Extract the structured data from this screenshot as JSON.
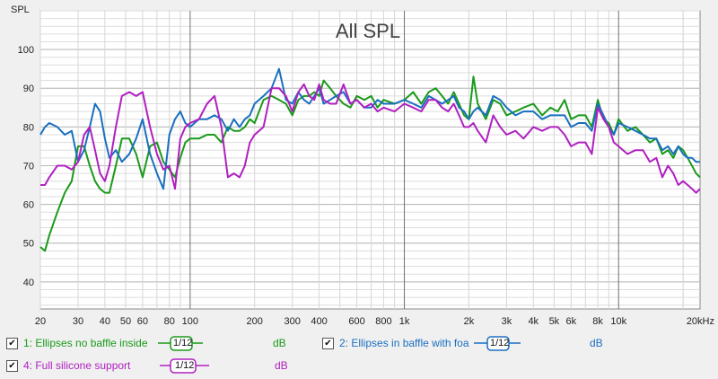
{
  "chart_data": {
    "type": "line",
    "title": "All SPL",
    "ylabel": "SPL",
    "xlabel": "",
    "x_scale": "log",
    "xlim": [
      20,
      24000
    ],
    "ylim": [
      33,
      110
    ],
    "grid": true,
    "y_ticks": [
      40,
      50,
      60,
      70,
      80,
      90,
      100
    ],
    "x_ticks": [
      {
        "v": 20,
        "label": "20"
      },
      {
        "v": 30,
        "label": "30"
      },
      {
        "v": 40,
        "label": "40"
      },
      {
        "v": 50,
        "label": "50"
      },
      {
        "v": 60,
        "label": "60"
      },
      {
        "v": 80,
        "label": "80"
      },
      {
        "v": 100,
        "label": "100"
      },
      {
        "v": 200,
        "label": "200"
      },
      {
        "v": 300,
        "label": "300"
      },
      {
        "v": 400,
        "label": "400"
      },
      {
        "v": 600,
        "label": "600"
      },
      {
        "v": 800,
        "label": "800"
      },
      {
        "v": 1000,
        "label": "1k"
      },
      {
        "v": 2000,
        "label": "2k"
      },
      {
        "v": 3000,
        "label": "3k"
      },
      {
        "v": 4000,
        "label": "4k"
      },
      {
        "v": 5000,
        "label": "5k"
      },
      {
        "v": 6000,
        "label": "6k"
      },
      {
        "v": 8000,
        "label": "8k"
      },
      {
        "v": 10000,
        "label": "10k"
      },
      {
        "v": 20000,
        "label": "20kHz"
      }
    ],
    "series": [
      {
        "name": "1: Ellipses no baffle inside",
        "color": "#1a9a1a",
        "x": [
          20,
          21,
          22,
          24,
          26,
          28,
          30,
          32,
          34,
          36,
          38,
          40,
          42,
          45,
          48,
          52,
          56,
          60,
          65,
          70,
          75,
          80,
          85,
          90,
          95,
          100,
          110,
          120,
          130,
          140,
          150,
          160,
          170,
          180,
          190,
          200,
          220,
          240,
          260,
          280,
          300,
          320,
          340,
          360,
          380,
          400,
          420,
          450,
          480,
          520,
          560,
          600,
          650,
          700,
          750,
          800,
          900,
          1000,
          1100,
          1200,
          1300,
          1400,
          1500,
          1600,
          1700,
          1800,
          1900,
          2000,
          2100,
          2200,
          2400,
          2600,
          2800,
          3000,
          3300,
          3600,
          4000,
          4400,
          4800,
          5200,
          5600,
          6000,
          6500,
          7000,
          7500,
          8000,
          8500,
          9000,
          9500,
          10000,
          11000,
          12000,
          13000,
          14000,
          15000,
          16000,
          17000,
          18000,
          19000,
          20000,
          21000,
          22000,
          23000,
          24000
        ],
        "y": [
          49,
          48,
          52,
          58,
          63,
          66,
          75,
          75,
          70,
          66,
          64,
          63,
          63,
          70,
          77,
          77,
          73,
          67,
          75,
          76,
          71,
          69,
          67,
          72,
          76,
          77,
          77,
          78,
          78,
          76,
          80,
          79,
          79,
          80,
          82,
          81,
          87,
          88,
          87,
          86,
          83,
          87,
          88,
          88,
          89,
          88,
          92,
          90,
          88,
          86,
          85,
          88,
          87,
          88,
          85,
          87,
          86,
          87,
          89,
          86,
          89,
          90,
          88,
          86,
          89,
          86,
          83,
          82,
          93,
          86,
          82,
          87,
          86,
          83,
          84,
          85,
          86,
          83,
          85,
          84,
          87,
          82,
          83,
          83,
          80,
          87,
          82,
          81,
          78,
          82,
          79,
          80,
          78,
          76,
          77,
          73,
          74,
          72,
          75,
          74,
          72,
          70,
          68,
          67
        ]
      },
      {
        "name": "2: Ellipses in baffle with foa",
        "color": "#1a6fc0",
        "x": [
          20,
          21,
          22,
          24,
          26,
          28,
          30,
          32,
          34,
          36,
          38,
          40,
          42,
          45,
          48,
          52,
          56,
          60,
          65,
          70,
          75,
          80,
          85,
          90,
          95,
          100,
          110,
          120,
          130,
          140,
          150,
          160,
          170,
          180,
          190,
          200,
          220,
          240,
          260,
          280,
          300,
          320,
          340,
          360,
          380,
          400,
          420,
          450,
          480,
          520,
          560,
          600,
          650,
          700,
          750,
          800,
          900,
          1000,
          1100,
          1200,
          1300,
          1400,
          1500,
          1600,
          1700,
          1800,
          1900,
          2000,
          2100,
          2200,
          2400,
          2600,
          2800,
          3000,
          3300,
          3600,
          4000,
          4400,
          4800,
          5200,
          5600,
          6000,
          6500,
          7000,
          7500,
          8000,
          8500,
          9000,
          9500,
          10000,
          11000,
          12000,
          13000,
          14000,
          15000,
          16000,
          17000,
          18000,
          19000,
          20000,
          21000,
          22000,
          23000,
          24000
        ],
        "y": [
          78,
          80,
          81,
          80,
          78,
          79,
          71,
          74,
          80,
          86,
          84,
          77,
          72,
          74,
          71,
          73,
          77,
          82,
          73,
          68,
          64,
          78,
          82,
          84,
          81,
          80,
          82,
          82,
          83,
          82,
          79,
          82,
          80,
          82,
          83,
          86,
          88,
          90,
          95,
          87,
          86,
          89,
          87,
          86,
          88,
          90,
          86,
          87,
          88,
          89,
          86,
          87,
          85,
          85,
          87,
          86,
          86,
          87,
          86,
          85,
          88,
          87,
          86,
          87,
          88,
          85,
          84,
          82,
          84,
          85,
          83,
          88,
          87,
          85,
          83,
          84,
          84,
          82,
          83,
          83,
          83,
          80,
          81,
          81,
          79,
          86,
          83,
          80,
          78,
          81,
          80,
          79,
          78,
          77,
          77,
          74,
          75,
          73,
          75,
          73,
          72,
          72,
          71,
          71
        ]
      },
      {
        "name": "4: Full silicone support",
        "color": "#b020c0",
        "x": [
          20,
          21,
          22,
          24,
          26,
          28,
          30,
          32,
          34,
          36,
          38,
          40,
          42,
          45,
          48,
          52,
          56,
          60,
          65,
          70,
          75,
          80,
          85,
          90,
          95,
          100,
          110,
          120,
          130,
          140,
          150,
          160,
          170,
          180,
          190,
          200,
          220,
          240,
          260,
          280,
          300,
          320,
          340,
          360,
          380,
          400,
          420,
          450,
          480,
          520,
          560,
          600,
          650,
          700,
          750,
          800,
          900,
          1000,
          1100,
          1200,
          1300,
          1400,
          1500,
          1600,
          1700,
          1800,
          1900,
          2000,
          2100,
          2200,
          2400,
          2600,
          2800,
          3000,
          3300,
          3600,
          4000,
          4400,
          4800,
          5200,
          5600,
          6000,
          6500,
          7000,
          7500,
          8000,
          8500,
          9000,
          9500,
          10000,
          11000,
          12000,
          13000,
          14000,
          15000,
          16000,
          17000,
          18000,
          19000,
          20000,
          21000,
          22000,
          23000,
          24000
        ],
        "y": [
          65,
          65,
          67,
          70,
          70,
          69,
          71,
          78,
          80,
          74,
          68,
          66,
          70,
          80,
          88,
          89,
          88,
          89,
          80,
          73,
          69,
          70,
          64,
          77,
          80,
          81,
          82,
          86,
          88,
          80,
          67,
          68,
          67,
          70,
          76,
          78,
          80,
          90,
          90,
          88,
          84,
          89,
          91,
          88,
          87,
          91,
          87,
          86,
          86,
          91,
          86,
          87,
          85,
          86,
          84,
          85,
          84,
          86,
          85,
          84,
          87,
          87,
          85,
          84,
          86,
          83,
          80,
          80,
          81,
          79,
          76,
          83,
          80,
          78,
          79,
          77,
          80,
          79,
          80,
          80,
          78,
          75,
          76,
          76,
          73,
          85,
          82,
          80,
          76,
          75,
          73,
          74,
          74,
          71,
          72,
          67,
          70,
          68,
          65,
          66,
          65,
          64,
          63,
          64
        ]
      }
    ]
  },
  "legend": {
    "items": [
      {
        "checked": "✔",
        "label": "1: Ellipses no baffle inside",
        "smoothing": "1/12",
        "unit": "dB",
        "color": "#1a9a1a"
      },
      {
        "checked": "✔",
        "label": "2: Ellipses in baffle with foa",
        "smoothing": "1/12",
        "unit": "dB",
        "color": "#1a6fc0"
      },
      {
        "checked": "✔",
        "label": "4: Full silicone support",
        "smoothing": "1/12",
        "unit": "dB",
        "color": "#b020c0"
      }
    ]
  }
}
